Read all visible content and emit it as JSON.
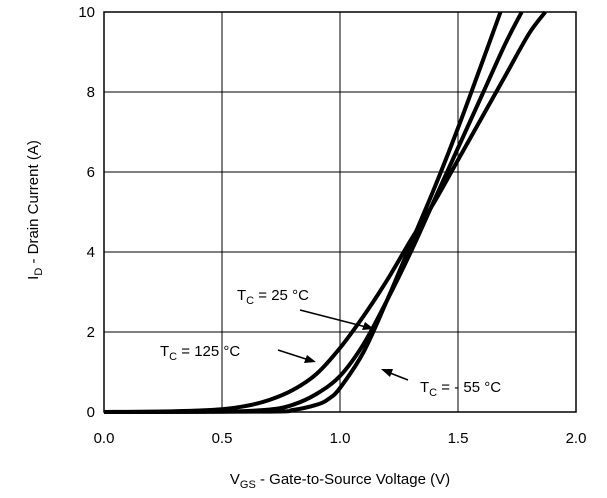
{
  "chart_data": {
    "type": "line",
    "xlabel": {
      "main": "V",
      "sub": "GS",
      "rest": " - Gate-to-Source Voltage (V)"
    },
    "ylabel": {
      "main": "I",
      "sub": "D",
      "rest": " - Drain Current (A)"
    },
    "xlim": [
      0.0,
      2.0
    ],
    "ylim": [
      0,
      10
    ],
    "xticks": [
      0.0,
      0.5,
      1.0,
      1.5,
      2.0
    ],
    "xtick_labels": [
      "0.0",
      "0.5",
      "1.0",
      "1.5",
      "2.0"
    ],
    "yticks": [
      0,
      2,
      4,
      6,
      8,
      10
    ],
    "ytick_labels": [
      "0",
      "2",
      "4",
      "6",
      "8",
      "10"
    ],
    "grid": true,
    "series": [
      {
        "name": "TC = 125 °C",
        "label": {
          "main": "T",
          "sub": "C",
          "rest": " = 125 °C"
        },
        "x": [
          0.0,
          0.3,
          0.5,
          0.6,
          0.7,
          0.8,
          0.9,
          1.0,
          1.1,
          1.2,
          1.3,
          1.4,
          1.5,
          1.6,
          1.7,
          1.8,
          1.87
        ],
        "y": [
          0.0,
          0.02,
          0.07,
          0.15,
          0.3,
          0.55,
          0.95,
          1.6,
          2.4,
          3.3,
          4.3,
          5.25,
          6.3,
          7.35,
          8.4,
          9.45,
          10.0
        ]
      },
      {
        "name": "TC = 25 °C",
        "label": {
          "main": "T",
          "sub": "C",
          "rest": " = 25 °C"
        },
        "x": [
          0.0,
          0.5,
          0.7,
          0.8,
          0.9,
          1.0,
          1.1,
          1.2,
          1.3,
          1.4,
          1.5,
          1.6,
          1.7,
          1.77
        ],
        "y": [
          0.0,
          0.01,
          0.06,
          0.18,
          0.45,
          0.9,
          1.7,
          2.8,
          4.0,
          5.3,
          6.6,
          7.9,
          9.2,
          10.0
        ]
      },
      {
        "name": "TC = - 55 °C",
        "label": {
          "main": "T",
          "sub": "C",
          "rest": " = - 55 °C"
        },
        "x": [
          0.0,
          0.7,
          0.8,
          0.9,
          0.95,
          1.0,
          1.1,
          1.2,
          1.3,
          1.4,
          1.5,
          1.6,
          1.68
        ],
        "y": [
          0.0,
          0.01,
          0.05,
          0.18,
          0.32,
          0.6,
          1.5,
          2.8,
          4.2,
          5.6,
          7.1,
          8.7,
          10.0
        ]
      }
    ],
    "annotations": [
      {
        "series": 1,
        "text": "TC = 25 °C"
      },
      {
        "series": 0,
        "text": "TC = 125 °C"
      },
      {
        "series": 2,
        "text": "TC = - 55 °C"
      }
    ]
  }
}
